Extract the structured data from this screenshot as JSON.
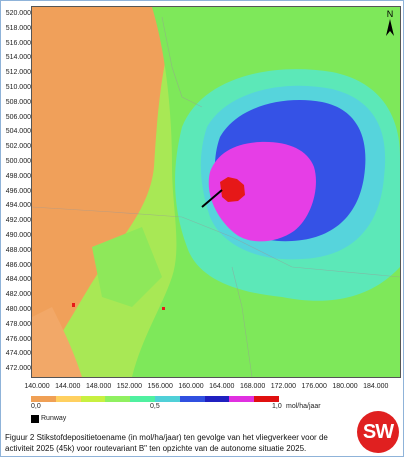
{
  "y_axis_labels": [
    "520.000",
    "518.000",
    "516.000",
    "514.000",
    "512.000",
    "510.000",
    "508.000",
    "506.000",
    "504.000",
    "502.000",
    "500.000",
    "498.000",
    "496.000",
    "494.000",
    "492.000",
    "490.000",
    "488.000",
    "486.000",
    "484.000",
    "482.000",
    "480.000",
    "478.000",
    "476.000",
    "474.000",
    "472.000"
  ],
  "x_axis_labels": [
    "140.000",
    "144.000",
    "148.000",
    "152.000",
    "156.000",
    "160.000",
    "164.000",
    "168.000",
    "172.000",
    "176.000",
    "180.000",
    "184.000"
  ],
  "legend": {
    "tick_0": "0,0",
    "tick_mid": "0,5",
    "tick_max": "1,0",
    "unit": "mol/ha/jaar",
    "colors": [
      "#f0a055",
      "#ffd060",
      "#c8f040",
      "#90f060",
      "#50f0a0",
      "#50d0d8",
      "#3050e0",
      "#2020c0",
      "#e030e0",
      "#e01010"
    ],
    "runway_label": "Runway"
  },
  "map_colors": {
    "background_orange": "#f0a05a",
    "light_green": "#a8e855",
    "green": "#7ee85a",
    "aqua": "#5ce8b8",
    "cyan": "#56d4dc",
    "blue": "#3552e6",
    "magenta": "#e63ee6",
    "red": "#e61818"
  },
  "north_label": "N",
  "logo_text": "SW",
  "caption": {
    "line1": "Figuur 2  Stikstofdepositietoename (in mol/ha/jaar) ten gevolge van het vliegverkeer voor de",
    "line2": "activiteit 2025 (45k) voor routevariant B\" ten opzichte van de autonome situatie 2025."
  }
}
